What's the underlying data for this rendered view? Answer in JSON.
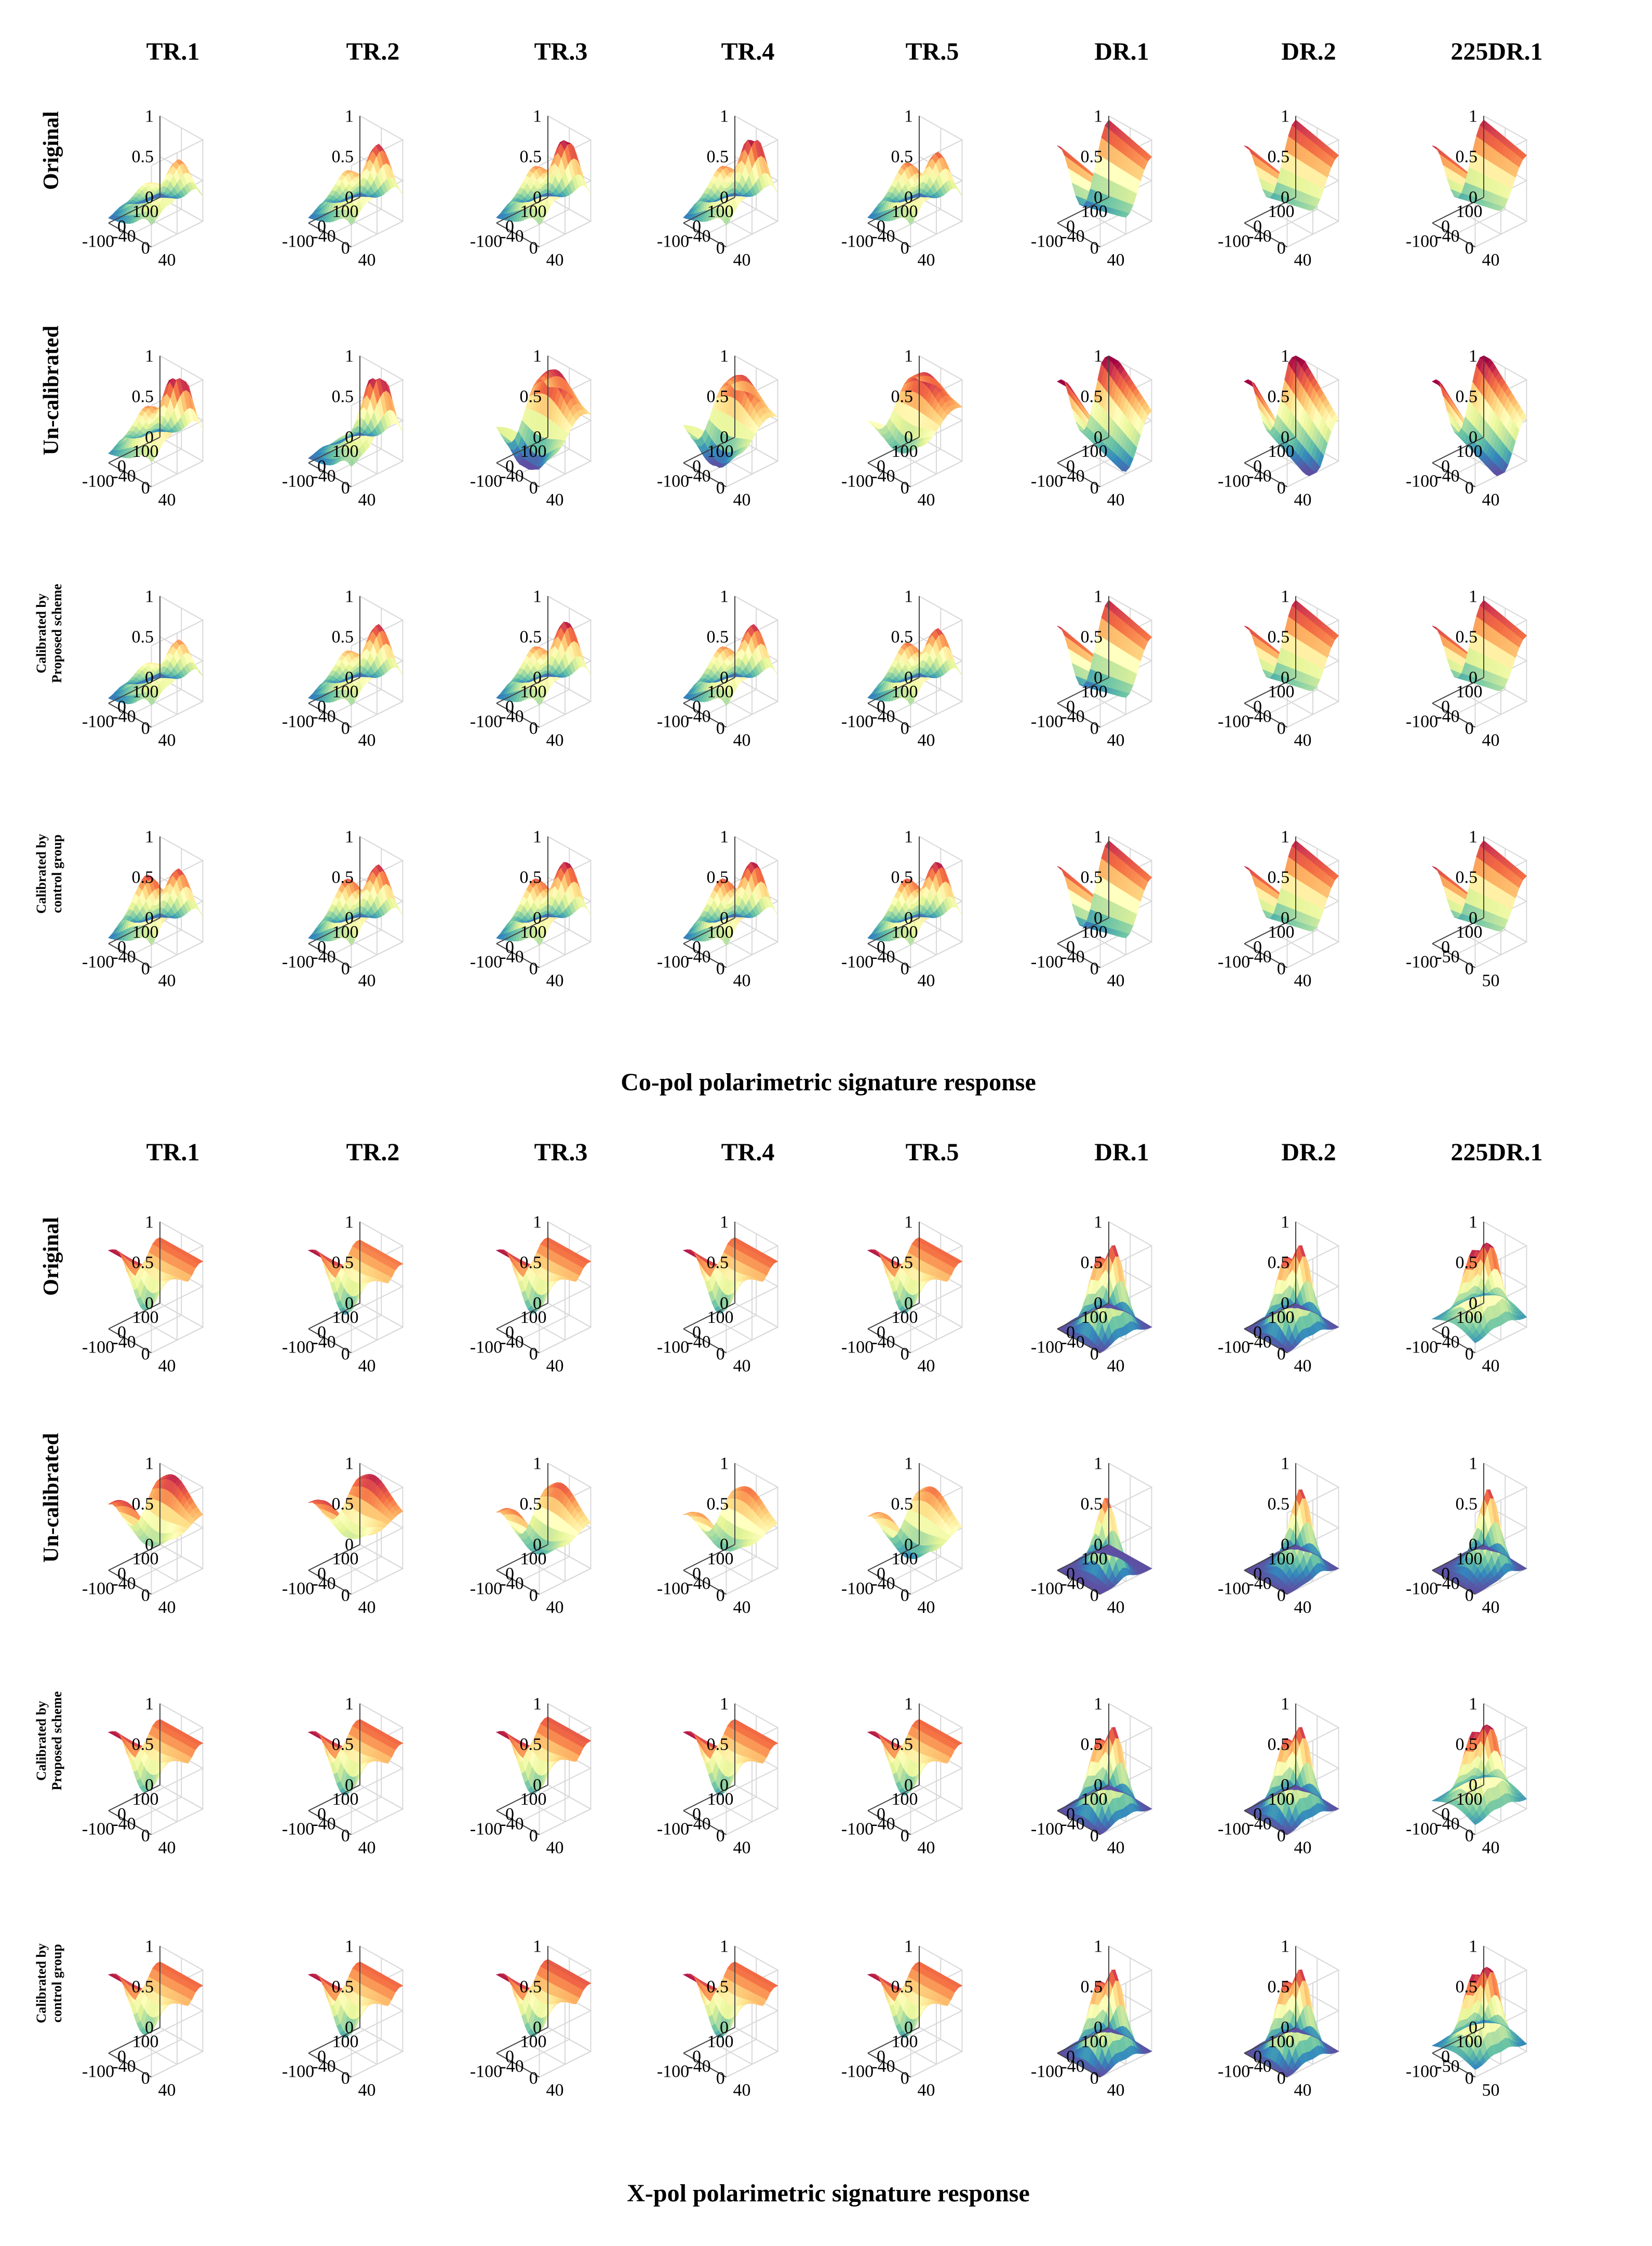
{
  "figure": {
    "columns": [
      "TR.1",
      "TR.2",
      "TR.3",
      "TR.4",
      "TR.5",
      "DR.1",
      "DR.2",
      "225DR.1"
    ],
    "row_labels": [
      {
        "lines": [
          "Original"
        ]
      },
      {
        "lines": [
          "Un-calibrated"
        ]
      },
      {
        "lines": [
          "Calibrated by",
          "Proposed scheme"
        ]
      },
      {
        "lines": [
          "Calibrated by",
          "control group"
        ]
      }
    ],
    "colormap": [
      "#5e4fa2",
      "#3288bd",
      "#66c2a5",
      "#abdda4",
      "#e6f598",
      "#ffffbf",
      "#fee08b",
      "#fdae61",
      "#f46d43",
      "#d53e4f",
      "#9e0142"
    ]
  },
  "chart_data": [
    {
      "type": "surface",
      "title": "Co-pol polarimetric signature response",
      "z_ticks": [
        "0",
        "0.5",
        "1"
      ],
      "zlim": [
        0,
        1
      ],
      "x_ticks": [
        "100",
        "0",
        "-100"
      ],
      "y_ticks": [
        "-40",
        "0",
        "40"
      ],
      "y_ticks_alt": [
        "-50",
        "0",
        "50"
      ],
      "panels": [
        [
          {
            "type": "tr",
            "a1": 0.55,
            "a2": 0.45,
            "pv": 0.9,
            "lift": 0.05
          },
          {
            "type": "tr",
            "a1": 0.75,
            "a2": 0.6,
            "pv": 0.85,
            "lift": 0.05
          },
          {
            "type": "tr",
            "a1": 0.85,
            "a2": 0.65,
            "pv": 0.85,
            "lift": 0.05
          },
          {
            "type": "tr",
            "a1": 0.9,
            "a2": 0.65,
            "pv": 0.85,
            "lift": 0.05
          },
          {
            "type": "tr",
            "a1": 0.65,
            "a2": 0.7,
            "pv": 0.85,
            "lift": 0.05
          },
          {
            "type": "dr",
            "tilt": 0.0,
            "base": 0.5,
            "amp": 0.45
          },
          {
            "type": "dr",
            "tilt": 0.0,
            "base": 0.55,
            "amp": 0.4
          },
          {
            "type": "dr",
            "tilt": 0.0,
            "base": 0.55,
            "amp": 0.4
          }
        ],
        [
          {
            "type": "tr",
            "a1": 0.95,
            "a2": 0.6,
            "pv": 0.8,
            "lift": 0.1
          },
          {
            "type": "tr",
            "a1": 1.0,
            "a2": 0.3,
            "pv": 0.85,
            "lift": 0.05
          },
          {
            "type": "wave",
            "base": 0.45,
            "amp": 0.5,
            "tilt": 0.3
          },
          {
            "type": "wave",
            "base": 0.45,
            "amp": 0.45,
            "tilt": 0.2
          },
          {
            "type": "wave",
            "base": 0.55,
            "amp": 0.35,
            "tilt": 0.3
          },
          {
            "type": "dr",
            "tilt": 0.35,
            "base": 0.5,
            "amp": 0.45
          },
          {
            "type": "dr",
            "tilt": 0.45,
            "base": 0.45,
            "amp": 0.45
          },
          {
            "type": "dr",
            "tilt": 0.4,
            "base": 0.45,
            "amp": 0.45
          }
        ],
        [
          {
            "type": "tr",
            "a1": 0.55,
            "a2": 0.45,
            "pv": 0.9,
            "lift": 0.05
          },
          {
            "type": "tr",
            "a1": 0.75,
            "a2": 0.6,
            "pv": 0.85,
            "lift": 0.05
          },
          {
            "type": "tr",
            "a1": 0.8,
            "a2": 0.65,
            "pv": 0.85,
            "lift": 0.05
          },
          {
            "type": "tr",
            "a1": 0.75,
            "a2": 0.65,
            "pv": 0.85,
            "lift": 0.05
          },
          {
            "type": "tr",
            "a1": 0.7,
            "a2": 0.7,
            "pv": 0.85,
            "lift": 0.05
          },
          {
            "type": "dr",
            "tilt": 0.0,
            "base": 0.5,
            "amp": 0.45
          },
          {
            "type": "dr",
            "tilt": 0.0,
            "base": 0.55,
            "amp": 0.4
          },
          {
            "type": "dr",
            "tilt": 0.0,
            "base": 0.55,
            "amp": 0.4
          }
        ],
        [
          {
            "type": "tr",
            "a1": 0.7,
            "a2": 0.8,
            "pv": 0.85,
            "lift": 0.05
          },
          {
            "type": "tr",
            "a1": 0.75,
            "a2": 0.75,
            "pv": 0.85,
            "lift": 0.05
          },
          {
            "type": "tr",
            "a1": 0.8,
            "a2": 0.75,
            "pv": 0.85,
            "lift": 0.05
          },
          {
            "type": "tr",
            "a1": 0.8,
            "a2": 0.75,
            "pv": 0.85,
            "lift": 0.05
          },
          {
            "type": "tr",
            "a1": 0.8,
            "a2": 0.75,
            "pv": 0.85,
            "lift": 0.05
          },
          {
            "type": "dr",
            "tilt": 0.0,
            "base": 0.5,
            "amp": 0.45
          },
          {
            "type": "dr",
            "tilt": 0.0,
            "base": 0.55,
            "amp": 0.4
          },
          {
            "type": "dr",
            "tilt": 0.0,
            "base": 0.55,
            "amp": 0.4
          }
        ]
      ]
    },
    {
      "type": "surface",
      "title": "X-pol polarimetric signature response",
      "z_ticks": [
        "0",
        "0.5",
        "1"
      ],
      "zlim": [
        0,
        1
      ],
      "x_ticks": [
        "100",
        "0",
        "-100"
      ],
      "y_ticks": [
        "-40",
        "0",
        "40"
      ],
      "y_ticks_alt": [
        "-50",
        "0",
        "50"
      ],
      "panels": [
        [
          {
            "type": "xtr",
            "left": 0.85,
            "right": 0.95,
            "dip": 0.9
          },
          {
            "type": "xtr",
            "left": 0.8,
            "right": 0.95,
            "dip": 0.95
          },
          {
            "type": "xtr",
            "left": 0.85,
            "right": 0.95,
            "dip": 0.95
          },
          {
            "type": "xtr",
            "left": 0.85,
            "right": 0.95,
            "dip": 0.95
          },
          {
            "type": "xtr",
            "left": 0.85,
            "right": 0.95,
            "dip": 0.95
          },
          {
            "type": "xdr",
            "p1": 0.95,
            "p2": 0.9,
            "sep": 0.3
          },
          {
            "type": "xdr",
            "p1": 0.95,
            "p2": 0.9,
            "sep": 0.3
          },
          {
            "type": "xdr",
            "p1": 0.85,
            "p2": 0.8,
            "sep": 0.3,
            "floor": 0.2
          }
        ],
        [
          {
            "type": "xwave",
            "base": 0.6,
            "amp": 0.35
          },
          {
            "type": "xwave",
            "base": 0.65,
            "amp": 0.3
          },
          {
            "type": "xwave",
            "base": 0.5,
            "amp": 0.35
          },
          {
            "type": "xwave",
            "base": 0.5,
            "amp": 0.3
          },
          {
            "type": "xwave",
            "base": 0.45,
            "amp": 0.35
          },
          {
            "type": "xdr",
            "p1": 0.9,
            "p2": 0.0,
            "sep": 0.0
          },
          {
            "type": "xdr",
            "p1": 0.95,
            "p2": 0.25,
            "sep": 0.3
          },
          {
            "type": "xdr",
            "p1": 0.95,
            "p2": 0.25,
            "sep": 0.3
          }
        ],
        [
          {
            "type": "xtr",
            "left": 0.85,
            "right": 0.95,
            "dip": 0.9
          },
          {
            "type": "xtr",
            "left": 0.85,
            "right": 0.95,
            "dip": 0.95
          },
          {
            "type": "xtr",
            "left": 0.9,
            "right": 0.95,
            "dip": 0.95
          },
          {
            "type": "xtr",
            "left": 0.85,
            "right": 0.95,
            "dip": 0.95
          },
          {
            "type": "xtr",
            "left": 0.85,
            "right": 0.95,
            "dip": 0.95
          },
          {
            "type": "xdr",
            "p1": 0.95,
            "p2": 0.9,
            "sep": 0.3
          },
          {
            "type": "xdr",
            "p1": 0.95,
            "p2": 0.9,
            "sep": 0.3
          },
          {
            "type": "xdr",
            "p1": 0.85,
            "p2": 0.8,
            "sep": 0.3,
            "floor": 0.2
          }
        ],
        [
          {
            "type": "xtr",
            "left": 0.85,
            "right": 0.95,
            "dip": 0.9
          },
          {
            "type": "xtr",
            "left": 0.85,
            "right": 0.95,
            "dip": 0.95
          },
          {
            "type": "xtr",
            "left": 0.9,
            "right": 0.95,
            "dip": 0.95
          },
          {
            "type": "xtr",
            "left": 0.85,
            "right": 0.95,
            "dip": 0.95
          },
          {
            "type": "xtr",
            "left": 0.85,
            "right": 0.95,
            "dip": 0.95
          },
          {
            "type": "xdr",
            "p1": 0.95,
            "p2": 0.9,
            "sep": 0.3
          },
          {
            "type": "xdr",
            "p1": 0.95,
            "p2": 0.9,
            "sep": 0.3
          },
          {
            "type": "xdr",
            "p1": 0.9,
            "p2": 0.85,
            "sep": 0.3,
            "floor": 0.15
          }
        ]
      ]
    }
  ]
}
